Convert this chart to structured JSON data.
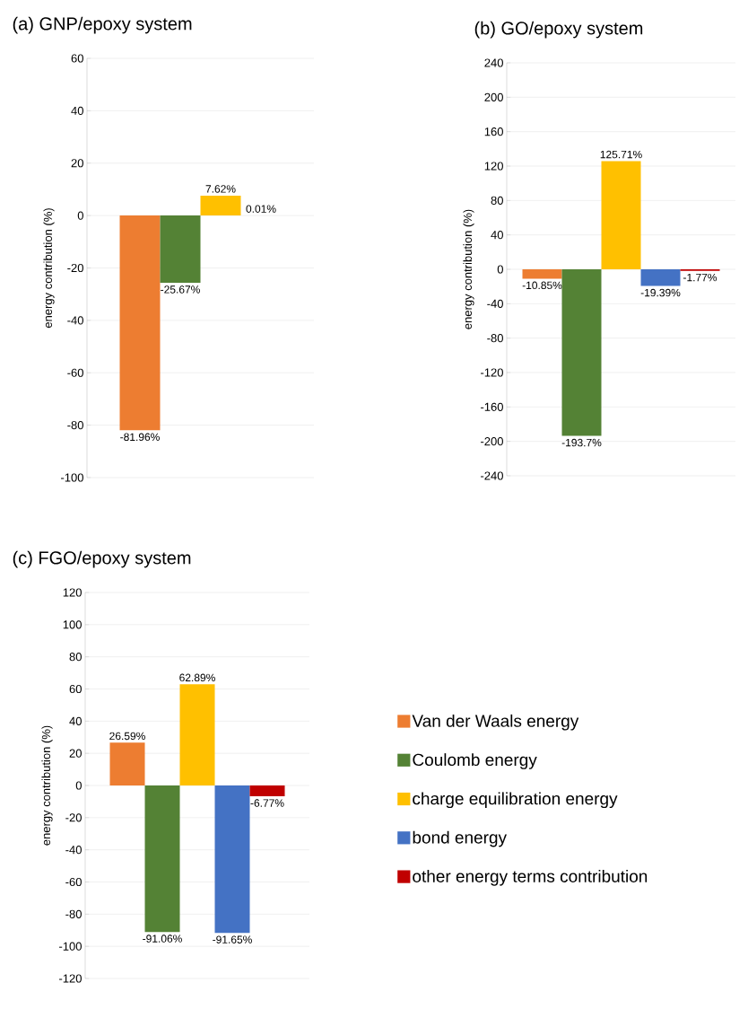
{
  "chart_data": [
    {
      "type": "bar",
      "title": "(a) GNP/epoxy system",
      "ylabel": "energy contribution (%)",
      "categories": [
        null
      ],
      "ylim": [
        -100,
        60
      ],
      "yticks": [
        -100,
        -80,
        -60,
        -40,
        -20,
        0,
        20,
        40,
        60
      ],
      "grid": "y",
      "legend": false,
      "series": [
        {
          "color": "#ed7d31",
          "values": [
            -81.96
          ],
          "value_labels": [
            "-81.96%"
          ]
        },
        {
          "color": "#548235",
          "values": [
            -25.67
          ],
          "value_labels": [
            "-25.67%"
          ]
        },
        {
          "color": "#ffc000",
          "values": [
            7.62
          ],
          "value_labels": [
            "7.62%"
          ]
        },
        {
          "color": "#c00000",
          "values": [
            0.01
          ],
          "value_labels": [
            "0.01%"
          ]
        }
      ]
    },
    {
      "type": "bar",
      "title": "(b) GO/epoxy system",
      "ylabel": "energy contribution (%)",
      "categories": [
        null
      ],
      "ylim": [
        -240,
        240
      ],
      "yticks": [
        -240,
        -200,
        -160,
        -120,
        -80,
        -40,
        0,
        40,
        80,
        120,
        160,
        200,
        240
      ],
      "grid": "y",
      "legend": false,
      "series": [
        {
          "color": "#ed7d31",
          "values": [
            -10.85
          ],
          "value_labels": [
            "-10.85%"
          ]
        },
        {
          "color": "#548235",
          "values": [
            -193.7
          ],
          "value_labels": [
            "-193.7%"
          ]
        },
        {
          "color": "#ffc000",
          "values": [
            125.71
          ],
          "value_labels": [
            "125.71%"
          ]
        },
        {
          "color": "#4472c4",
          "values": [
            -19.39
          ],
          "value_labels": [
            "-19.39%"
          ]
        },
        {
          "color": "#c00000",
          "values": [
            -1.77
          ],
          "value_labels": [
            "-1.77%"
          ]
        }
      ]
    },
    {
      "type": "bar",
      "title": "(c) FGO/epoxy system",
      "ylabel": "energy contribution (%)",
      "categories": [
        null
      ],
      "ylim": [
        -120,
        120
      ],
      "yticks": [
        -120,
        -100,
        -80,
        -60,
        -40,
        -20,
        0,
        20,
        40,
        60,
        80,
        100,
        120
      ],
      "grid": "y",
      "legend": "right",
      "series": [
        {
          "name": "Van der Waals energy",
          "color": "#ed7d31",
          "values": [
            26.59
          ],
          "value_labels": [
            "26.59%"
          ]
        },
        {
          "name": "Coulomb energy",
          "color": "#548235",
          "values": [
            -91.06
          ],
          "value_labels": [
            "-91.06%"
          ]
        },
        {
          "name": "charge equilibration energy",
          "color": "#ffc000",
          "values": [
            62.89
          ],
          "value_labels": [
            "62.89%"
          ]
        },
        {
          "name": "bond energy",
          "color": "#4472c4",
          "values": [
            -91.65
          ],
          "value_labels": [
            "-91.65%"
          ]
        },
        {
          "name": "other energy terms contribution",
          "color": "#c00000",
          "values": [
            -6.77
          ],
          "value_labels": [
            "-6.77%"
          ]
        }
      ]
    }
  ]
}
